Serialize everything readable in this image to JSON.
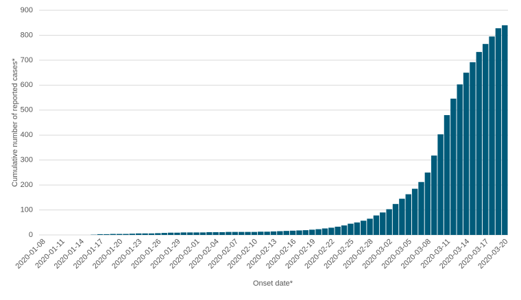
{
  "chart_data": {
    "type": "bar",
    "x_label": "Onset date*",
    "y_label": "Cumulative number of reported  cases*",
    "categories": [
      "2020-01-08",
      null,
      null,
      "2020-01-11",
      null,
      null,
      "2020-01-14",
      null,
      null,
      "2020-01-17",
      null,
      null,
      "2020-01-20",
      null,
      null,
      "2020-01-23",
      null,
      null,
      "2020-01-26",
      null,
      null,
      "2020-01-29",
      null,
      null,
      "2020-02-01",
      null,
      null,
      "2020-02-04",
      null,
      null,
      "2020-02-07",
      null,
      null,
      "2020-02-10",
      null,
      null,
      "2020-02-13",
      null,
      null,
      "2020-02-16",
      null,
      null,
      "2020-02-19",
      null,
      null,
      "2020-02-22",
      null,
      null,
      "2020-02-25",
      null,
      null,
      "2020-02-28",
      null,
      null,
      "2020-03-02",
      null,
      null,
      "2020-03-05",
      null,
      null,
      "2020-03-08",
      null,
      null,
      "2020-03-11",
      null,
      null,
      "2020-03-14",
      null,
      null,
      "2020-03-17",
      null,
      null,
      "2020-03-20"
    ],
    "values": [
      0,
      0,
      0,
      0,
      0,
      0,
      0,
      0,
      1,
      3,
      3,
      4,
      4,
      4,
      5,
      6,
      6,
      6,
      7,
      8,
      9,
      9,
      10,
      10,
      10,
      10,
      11,
      11,
      11,
      12,
      12,
      12,
      12,
      12,
      13,
      13,
      14,
      15,
      16,
      17,
      18,
      19,
      21,
      23,
      26,
      29,
      33,
      38,
      45,
      50,
      57,
      65,
      78,
      90,
      103,
      124,
      145,
      163,
      185,
      212,
      250,
      318,
      403,
      480,
      546,
      603,
      650,
      692,
      733,
      765,
      795,
      828,
      840
    ],
    "color": "#005b7a",
    "ylim": [
      0,
      900
    ],
    "yticks": [
      0,
      100,
      200,
      300,
      400,
      500,
      600,
      700,
      800,
      900
    ],
    "grid": true
  }
}
